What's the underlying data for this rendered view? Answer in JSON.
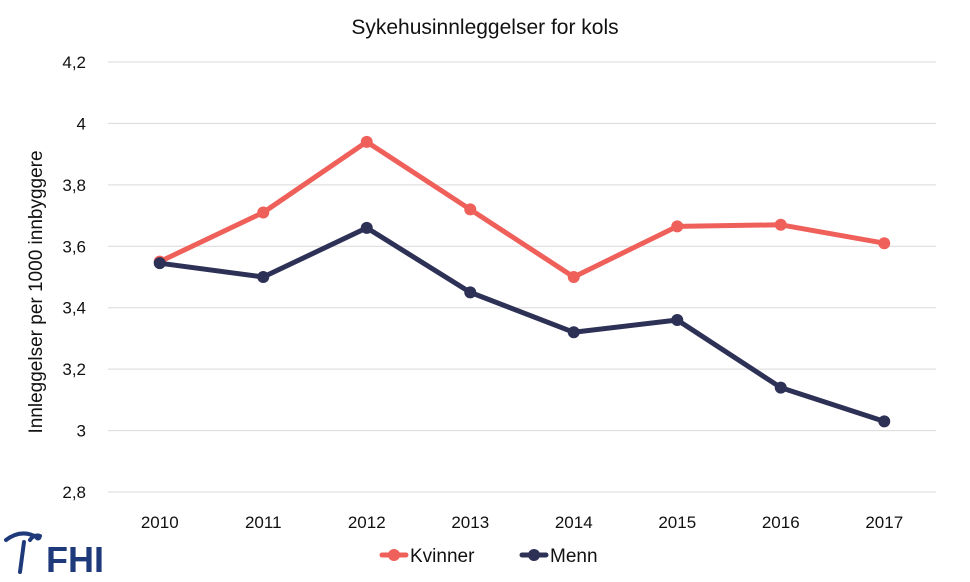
{
  "logo": {
    "text": "FHI",
    "color": "#1f3a7a"
  },
  "chart_data": {
    "type": "line",
    "title": "Sykehusinnleggelser for kols",
    "xlabel": "",
    "ylabel": "Innleggelser per 1000 innbyggere",
    "categories": [
      "2010",
      "2011",
      "2012",
      "2013",
      "2014",
      "2015",
      "2016",
      "2017"
    ],
    "ylim": [
      2.8,
      4.2
    ],
    "yticks": [
      2.8,
      3.0,
      3.2,
      3.4,
      3.6,
      3.8,
      4.0,
      4.2
    ],
    "ytick_labels": [
      "2,8",
      "3",
      "3,2",
      "3,4",
      "3,6",
      "3,8",
      "4",
      "4,2"
    ],
    "grid": true,
    "legend_position": "bottom",
    "series": [
      {
        "name": "Kvinner",
        "color": "#f0605a",
        "values": [
          3.55,
          3.71,
          3.94,
          3.72,
          3.5,
          3.665,
          3.67,
          3.61
        ]
      },
      {
        "name": "Menn",
        "color": "#2e3156",
        "values": [
          3.545,
          3.5,
          3.66,
          3.45,
          3.32,
          3.36,
          3.14,
          3.03
        ]
      }
    ]
  }
}
